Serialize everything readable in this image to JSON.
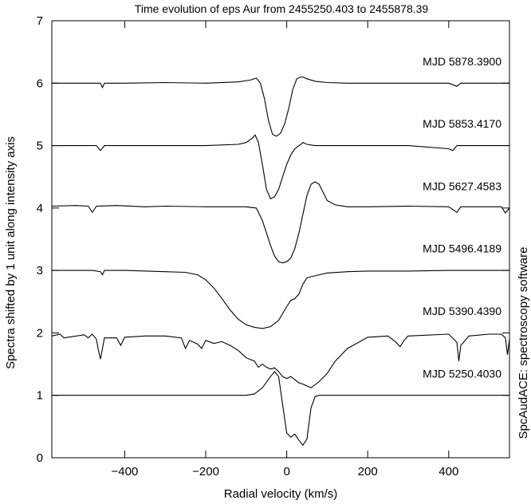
{
  "chart_data": {
    "type": "line",
    "title": "Time evolution of eps Aur  from 2455250.403 to 2455878.39",
    "xlabel": "Radial velocity (km/s)",
    "ylabel": "Spectra shifted by 1 unit along intensity axis",
    "side_label": "SpcAudACE: spectroscopy software",
    "xlim": [
      -580,
      550
    ],
    "ylim": [
      0,
      7
    ],
    "xticks": [
      -400,
      -200,
      0,
      200,
      400
    ],
    "yticks": [
      0,
      1,
      2,
      3,
      4,
      5,
      6,
      7
    ],
    "grid": false,
    "series": [
      {
        "name": "MJD 5878.3900",
        "offset": 6,
        "x": [
          -580,
          -500,
          -460,
          -455,
          -450,
          -400,
          -300,
          -200,
          -120,
          -90,
          -75,
          -65,
          -55,
          -45,
          -35,
          -25,
          -15,
          -5,
          5,
          15,
          25,
          35,
          40,
          50,
          70,
          100,
          150,
          200,
          300,
          400,
          420,
          430,
          450,
          550
        ],
        "y": [
          6.0,
          6.0,
          6.0,
          5.93,
          6.0,
          6.0,
          6.01,
          6.0,
          6.02,
          6.05,
          6.08,
          6.0,
          5.75,
          5.4,
          5.18,
          5.15,
          5.2,
          5.35,
          5.6,
          5.9,
          6.07,
          6.1,
          6.1,
          6.07,
          6.03,
          6.01,
          6.0,
          6.0,
          6.0,
          6.0,
          5.95,
          6.0,
          6.0,
          6.0
        ]
      },
      {
        "name": "MJD 5853.4170",
        "offset": 5,
        "x": [
          -580,
          -500,
          -470,
          -460,
          -450,
          -400,
          -300,
          -200,
          -120,
          -100,
          -85,
          -78,
          -70,
          -60,
          -50,
          -40,
          -30,
          -20,
          -10,
          0,
          10,
          20,
          30,
          35,
          40,
          50,
          70,
          100,
          200,
          300,
          400,
          410,
          420,
          550
        ],
        "y": [
          5.0,
          5.0,
          5.0,
          4.92,
          5.0,
          5.0,
          5.0,
          5.0,
          5.02,
          5.05,
          5.12,
          5.17,
          5.05,
          4.7,
          4.3,
          4.15,
          4.18,
          4.3,
          4.5,
          4.7,
          4.85,
          4.95,
          5.0,
          5.02,
          5.05,
          5.02,
          5.0,
          5.0,
          5.0,
          5.0,
          4.95,
          4.92,
          5.0,
          5.0
        ]
      },
      {
        "name": "MJD 5627.4583",
        "offset": 4,
        "x": [
          -580,
          -520,
          -490,
          -480,
          -470,
          -420,
          -350,
          -300,
          -200,
          -150,
          -100,
          -75,
          -60,
          -50,
          -40,
          -30,
          -20,
          -10,
          0,
          10,
          20,
          30,
          40,
          50,
          60,
          70,
          80,
          90,
          100,
          120,
          150,
          200,
          300,
          400,
          420,
          430,
          450,
          530,
          540,
          550
        ],
        "y": [
          4.03,
          4.04,
          4.03,
          3.93,
          4.03,
          4.04,
          4.02,
          4.03,
          4.02,
          4.02,
          4.02,
          4.0,
          3.8,
          3.6,
          3.4,
          3.23,
          3.14,
          3.12,
          3.14,
          3.2,
          3.35,
          3.6,
          3.9,
          4.2,
          4.38,
          4.42,
          4.38,
          4.25,
          4.12,
          4.05,
          4.02,
          4.02,
          4.03,
          4.02,
          3.93,
          4.02,
          4.02,
          4.02,
          3.92,
          4.0
        ]
      },
      {
        "name": "MJD 5496.4189",
        "offset": 3,
        "x": [
          -580,
          -480,
          -460,
          -455,
          -450,
          -400,
          -300,
          -250,
          -220,
          -200,
          -180,
          -160,
          -140,
          -120,
          -100,
          -80,
          -60,
          -40,
          -20,
          0,
          10,
          20,
          30,
          40,
          50,
          60,
          80,
          100,
          150,
          200,
          300,
          400,
          450,
          550
        ],
        "y": [
          3.0,
          3.0,
          2.98,
          2.93,
          3.0,
          3.0,
          2.98,
          2.97,
          2.93,
          2.85,
          2.72,
          2.55,
          2.37,
          2.22,
          2.13,
          2.09,
          2.07,
          2.1,
          2.2,
          2.42,
          2.52,
          2.55,
          2.62,
          2.78,
          2.88,
          2.9,
          2.93,
          2.96,
          2.98,
          2.99,
          2.99,
          3.0,
          3.0,
          3.0
        ]
      },
      {
        "name": "MJD 5390.4390",
        "offset": 2,
        "x": [
          -580,
          -560,
          -550,
          -500,
          -490,
          -480,
          -470,
          -465,
          -460,
          -455,
          -450,
          -420,
          -410,
          -400,
          -350,
          -300,
          -260,
          -250,
          -240,
          -220,
          -210,
          -200,
          -180,
          -160,
          -140,
          -120,
          -100,
          -80,
          -70,
          -60,
          -50,
          -40,
          -30,
          -20,
          -10,
          0,
          10,
          20,
          30,
          40,
          50,
          60,
          80,
          100,
          120,
          150,
          200,
          250,
          270,
          280,
          290,
          300,
          400,
          420,
          425,
          430,
          450,
          500,
          530,
          540,
          545,
          550
        ],
        "y": [
          1.95,
          1.98,
          1.92,
          1.97,
          1.92,
          1.98,
          1.9,
          1.72,
          1.58,
          1.75,
          1.92,
          1.92,
          1.8,
          1.93,
          1.95,
          1.95,
          1.92,
          1.75,
          1.88,
          1.82,
          1.75,
          1.88,
          1.83,
          1.86,
          1.8,
          1.72,
          1.6,
          1.55,
          1.45,
          1.5,
          1.45,
          1.42,
          1.44,
          1.38,
          1.3,
          1.27,
          1.3,
          1.25,
          1.2,
          1.18,
          1.15,
          1.12,
          1.22,
          1.35,
          1.55,
          1.75,
          1.93,
          1.95,
          1.85,
          1.78,
          1.88,
          1.95,
          1.98,
          1.85,
          1.55,
          1.8,
          1.95,
          1.98,
          1.98,
          1.92,
          1.65,
          1.9
        ]
      },
      {
        "name": "MJD 5250.4030",
        "offset": 1,
        "x": [
          -580,
          -500,
          -400,
          -300,
          -200,
          -150,
          -100,
          -80,
          -60,
          -40,
          -30,
          -20,
          -10,
          0,
          10,
          20,
          30,
          40,
          50,
          60,
          70,
          80,
          100,
          150,
          200,
          300,
          400,
          450,
          550
        ],
        "y": [
          1.0,
          1.0,
          1.0,
          1.0,
          1.0,
          1.0,
          1.0,
          1.02,
          1.12,
          1.3,
          1.38,
          1.3,
          0.85,
          0.4,
          0.33,
          0.38,
          0.28,
          0.2,
          0.3,
          0.8,
          0.98,
          1.0,
          1.0,
          1.0,
          1.0,
          1.0,
          1.0,
          1.0,
          1.0
        ]
      }
    ]
  }
}
